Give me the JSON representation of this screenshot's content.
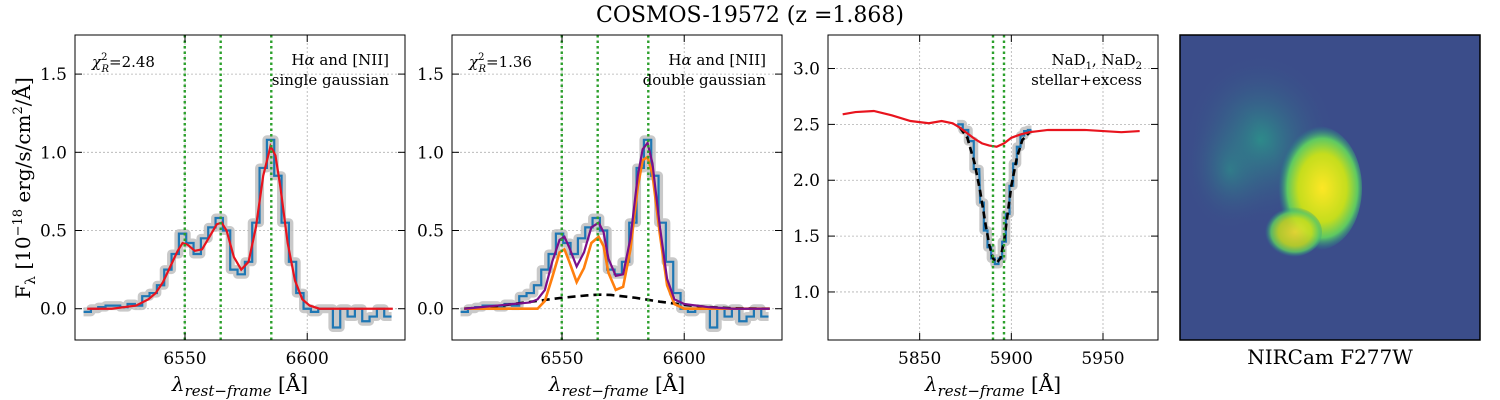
{
  "title": "COSMOS-19572 (z =1.868)",
  "colors": {
    "data": "#1f77b4",
    "err": "#bbbbbb",
    "model": "#e8141e",
    "narrow": "#ff7f0e",
    "broad": "#000000",
    "total": "#7b0f8a",
    "lines": "#2ca02c",
    "grid": "#b0b0b0"
  },
  "ylabel_prefix": "F",
  "ylabel_sub": "λ",
  "ylabel_text": "[10",
  "ylabel_exp": "−18",
  "ylabel_unit": "erg/s/cm",
  "ylabel_unit_exp": "2",
  "ylabel_unit_tail": "/Å]",
  "image_label": "NIRCam F277W",
  "chart_data": [
    {
      "type": "line",
      "xlabel": "λrest−frame [Å]",
      "xlim": [
        6505,
        6640
      ],
      "ylim": [
        -0.2,
        1.75
      ],
      "xticks": [
        6550,
        6600
      ],
      "yticks": [
        0.0,
        0.5,
        1.0,
        1.5
      ],
      "grid": true,
      "annotation_left": {
        "chi_label": "χ",
        "chi_sub": "R",
        "chi_sup": "2",
        "value": "=2.48"
      },
      "annotation_right": [
        "Hα and [NII]",
        "single gaussian"
      ],
      "vlines": [
        6549.9,
        6564.6,
        6585.3
      ],
      "data": {
        "x": [
          6510,
          6513,
          6516,
          6519,
          6522,
          6525,
          6528,
          6531,
          6534,
          6537,
          6540,
          6543,
          6546,
          6549,
          6552,
          6555,
          6558,
          6561,
          6564,
          6567,
          6570,
          6573,
          6576,
          6579,
          6582,
          6585,
          6588,
          6591,
          6594,
          6597,
          6600,
          6603,
          6606,
          6609,
          6612,
          6615,
          6618,
          6621,
          6624,
          6627,
          6630,
          6633
        ],
        "y": [
          -0.02,
          0.0,
          0.01,
          0.02,
          0.02,
          0.01,
          0.03,
          0.02,
          0.08,
          0.1,
          0.15,
          0.25,
          0.35,
          0.48,
          0.42,
          0.35,
          0.45,
          0.52,
          0.58,
          0.5,
          0.25,
          0.22,
          0.3,
          0.55,
          0.9,
          1.08,
          0.85,
          0.55,
          0.3,
          0.1,
          0.0,
          -0.02,
          0.0,
          0.0,
          -0.12,
          0.0,
          -0.05,
          0.0,
          -0.08,
          -0.05,
          0.0,
          -0.05
        ]
      },
      "model": {
        "name": "single gaussian",
        "x": [
          6510,
          6515,
          6520,
          6525,
          6530,
          6535,
          6538,
          6541,
          6544,
          6547,
          6549,
          6551,
          6554,
          6557,
          6560,
          6563,
          6565,
          6567,
          6570,
          6573,
          6576,
          6579,
          6582,
          6585,
          6587,
          6589,
          6592,
          6595,
          6598,
          6601,
          6605,
          6610,
          6620,
          6635
        ],
        "y": [
          0.0,
          0.0,
          0.0,
          0.01,
          0.02,
          0.06,
          0.1,
          0.17,
          0.27,
          0.37,
          0.42,
          0.41,
          0.37,
          0.38,
          0.46,
          0.54,
          0.55,
          0.5,
          0.33,
          0.25,
          0.3,
          0.52,
          0.85,
          1.04,
          0.98,
          0.78,
          0.42,
          0.18,
          0.06,
          0.02,
          0.0,
          0.0,
          0.0,
          0.0
        ]
      }
    },
    {
      "type": "line",
      "xlabel": "λrest−frame [Å]",
      "xlim": [
        6505,
        6640
      ],
      "ylim": [
        -0.2,
        1.75
      ],
      "xticks": [
        6550,
        6600
      ],
      "yticks": [
        0.0,
        0.5,
        1.0,
        1.5
      ],
      "grid": true,
      "annotation_left": {
        "chi_label": "χ",
        "chi_sub": "R",
        "chi_sup": "2",
        "value": "=1.36"
      },
      "annotation_right": [
        "Hα and [NII]",
        "double gaussian"
      ],
      "vlines": [
        6549.9,
        6564.6,
        6585.3
      ],
      "data": {
        "x": [
          6510,
          6513,
          6516,
          6519,
          6522,
          6525,
          6528,
          6531,
          6534,
          6537,
          6540,
          6543,
          6546,
          6549,
          6552,
          6555,
          6558,
          6561,
          6564,
          6567,
          6570,
          6573,
          6576,
          6579,
          6582,
          6585,
          6588,
          6591,
          6594,
          6597,
          6600,
          6603,
          6606,
          6609,
          6612,
          6615,
          6618,
          6621,
          6624,
          6627,
          6630,
          6633
        ],
        "y": [
          -0.02,
          0.0,
          0.01,
          0.02,
          0.02,
          0.01,
          0.03,
          0.02,
          0.08,
          0.1,
          0.15,
          0.25,
          0.35,
          0.48,
          0.42,
          0.35,
          0.45,
          0.52,
          0.58,
          0.5,
          0.25,
          0.22,
          0.3,
          0.55,
          0.9,
          1.08,
          0.85,
          0.55,
          0.3,
          0.1,
          0.0,
          -0.02,
          0.0,
          0.0,
          -0.12,
          0.0,
          -0.05,
          0.0,
          -0.08,
          -0.05,
          0.0,
          -0.05
        ]
      },
      "broad": {
        "x": [
          6510,
          6520,
          6530,
          6540,
          6550,
          6560,
          6565,
          6570,
          6580,
          6590,
          6600,
          6610,
          6620,
          6635
        ],
        "y": [
          0.0,
          0.01,
          0.03,
          0.05,
          0.07,
          0.085,
          0.09,
          0.088,
          0.07,
          0.045,
          0.025,
          0.01,
          0.003,
          0.0
        ]
      },
      "narrow": {
        "x": [
          6510,
          6530,
          6540,
          6543,
          6546,
          6549,
          6551,
          6553,
          6556,
          6559,
          6562,
          6565,
          6567,
          6569,
          6572,
          6575,
          6578,
          6581,
          6583,
          6585,
          6587,
          6590,
          6593,
          6596,
          6600,
          6610,
          6635
        ],
        "y": [
          0.0,
          0.0,
          0.0,
          0.05,
          0.2,
          0.36,
          0.38,
          0.3,
          0.17,
          0.26,
          0.42,
          0.46,
          0.4,
          0.23,
          0.12,
          0.14,
          0.38,
          0.78,
          0.95,
          0.97,
          0.86,
          0.48,
          0.15,
          0.03,
          0.0,
          0.0,
          0.0
        ]
      },
      "total": {
        "x": [
          6510,
          6530,
          6537,
          6540,
          6543,
          6546,
          6549,
          6551,
          6553,
          6556,
          6559,
          6562,
          6565,
          6567,
          6569,
          6572,
          6575,
          6578,
          6581,
          6583,
          6585,
          6587,
          6590,
          6593,
          6596,
          6600,
          6610,
          6620,
          6635
        ],
        "y": [
          0.0,
          0.03,
          0.04,
          0.06,
          0.12,
          0.3,
          0.44,
          0.46,
          0.39,
          0.27,
          0.36,
          0.52,
          0.55,
          0.49,
          0.32,
          0.21,
          0.22,
          0.45,
          0.85,
          1.02,
          1.06,
          0.93,
          0.53,
          0.19,
          0.06,
          0.03,
          0.01,
          0.0,
          0.0
        ]
      }
    },
    {
      "type": "line",
      "xlabel": "λrest−frame [Å]",
      "xlim": [
        5800,
        5980
      ],
      "ylim": [
        0.57,
        3.3
      ],
      "xticks": [
        5850,
        5900,
        5950
      ],
      "yticks": [
        1.0,
        1.5,
        2.0,
        2.5,
        3.0
      ],
      "grid": true,
      "annotation_right": [
        "NaD1, NaD2",
        "stellar+excess"
      ],
      "vlines": [
        5890,
        5896
      ],
      "data": {
        "x": [
          5872,
          5875,
          5878,
          5881,
          5884,
          5886,
          5888,
          5890,
          5892,
          5894,
          5896,
          5898,
          5900,
          5902,
          5904,
          5906,
          5908,
          5910
        ],
        "y": [
          2.5,
          2.45,
          2.35,
          2.1,
          1.8,
          1.55,
          1.4,
          1.3,
          1.25,
          1.3,
          1.45,
          1.7,
          1.95,
          2.15,
          2.3,
          2.4,
          2.44,
          2.45
        ]
      },
      "stellar": {
        "name": "stellar",
        "x": [
          5808,
          5815,
          5825,
          5835,
          5845,
          5855,
          5862,
          5868,
          5872,
          5876,
          5880,
          5884,
          5888,
          5892,
          5896,
          5900,
          5905,
          5910,
          5920,
          5930,
          5940,
          5950,
          5960,
          5970
        ],
        "y": [
          2.59,
          2.61,
          2.62,
          2.58,
          2.53,
          2.51,
          2.53,
          2.51,
          2.47,
          2.42,
          2.37,
          2.33,
          2.31,
          2.3,
          2.33,
          2.38,
          2.41,
          2.43,
          2.45,
          2.45,
          2.45,
          2.44,
          2.43,
          2.44
        ]
      },
      "excess": {
        "name": "stellar+excess",
        "x": [
          5872,
          5876,
          5880,
          5883,
          5886,
          5888,
          5890,
          5892,
          5894,
          5896,
          5898,
          5900,
          5903,
          5906,
          5910
        ],
        "y": [
          2.47,
          2.38,
          2.15,
          1.9,
          1.6,
          1.42,
          1.3,
          1.26,
          1.3,
          1.45,
          1.7,
          1.95,
          2.2,
          2.36,
          2.43
        ]
      }
    }
  ]
}
